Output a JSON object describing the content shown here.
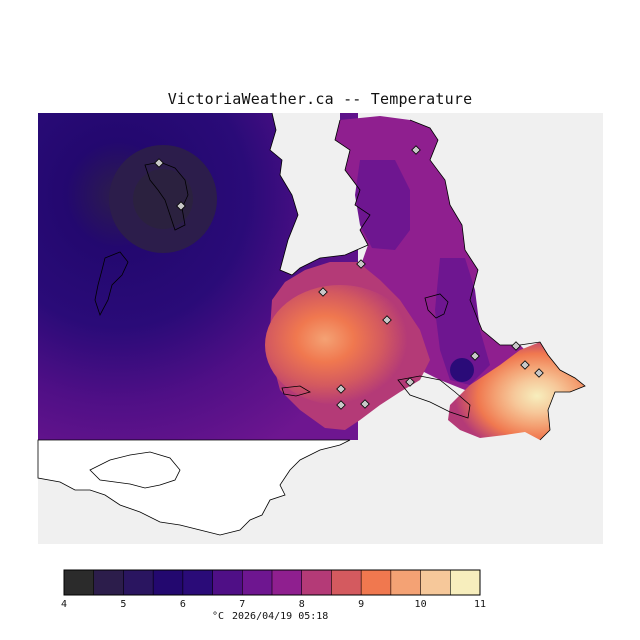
{
  "title": "VictoriaWeather.ca -- Temperature",
  "legend": {
    "unit": "°C",
    "timestamp": "2026/04/19 05:18",
    "ticks": [
      "4",
      "5",
      "6",
      "7",
      "8",
      "9",
      "10",
      "11"
    ],
    "colors": [
      "#2b2b2b",
      "#2c1d4b",
      "#2a1560",
      "#23086f",
      "#2a0b78",
      "#4f0f86",
      "#6e1690",
      "#8f1f8f",
      "#b43a77",
      "#d45a5f",
      "#f0784f",
      "#f4a274",
      "#f6c89a",
      "#f7eebd"
    ]
  },
  "stations": {
    "count": 14
  }
}
